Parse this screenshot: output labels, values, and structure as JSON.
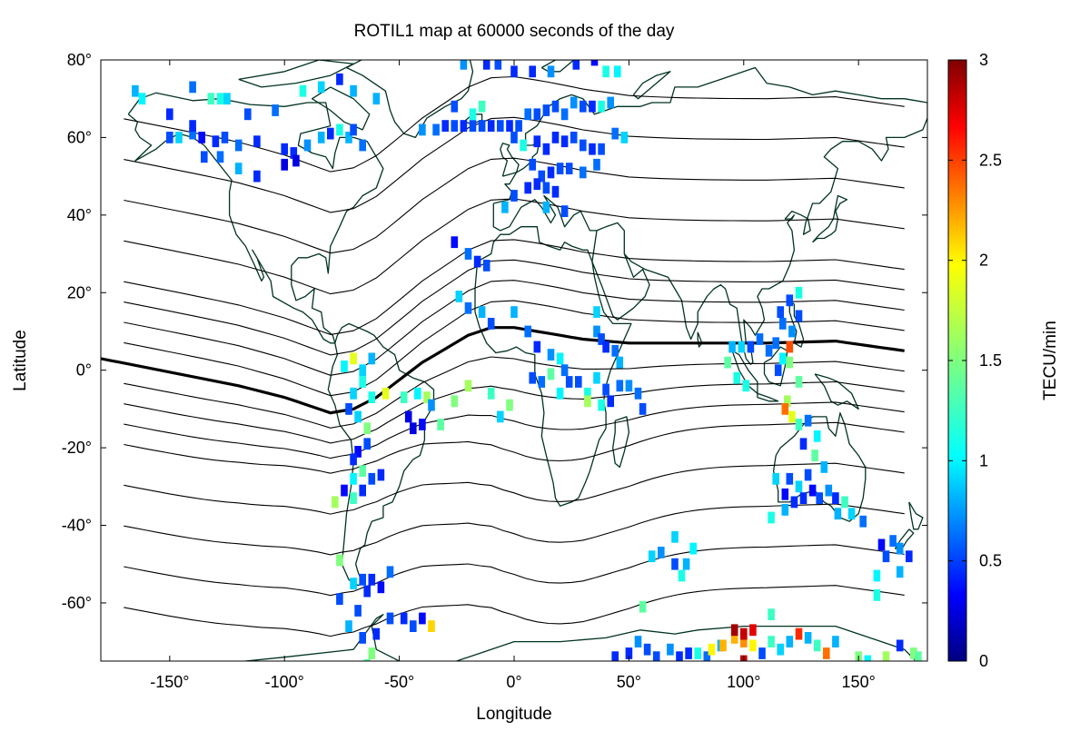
{
  "chart_data": {
    "type": "heatmap",
    "title": "ROTIL1 map at 60000 seconds of the day",
    "xlabel": "Longitude",
    "ylabel": "Latitude",
    "xlim": [
      -180,
      180
    ],
    "ylim": [
      -75,
      80
    ],
    "x_ticks": [
      -150,
      -100,
      -50,
      0,
      50,
      100,
      150
    ],
    "x_tick_labels": [
      "-150°",
      "-100°",
      "-50°",
      "0°",
      "50°",
      "100°",
      "150°"
    ],
    "y_ticks": [
      80,
      60,
      40,
      20,
      0,
      -20,
      -40,
      -60
    ],
    "y_tick_labels": [
      "80°",
      "60°",
      "40°",
      "20°",
      "0°",
      "-20°",
      "-40°",
      "-60°"
    ],
    "colorbar": {
      "label": "TECU/min",
      "range": [
        0,
        3
      ],
      "ticks": [
        0,
        0.5,
        1,
        1.5,
        2,
        2.5,
        3
      ],
      "tick_labels": [
        "0",
        "0.5",
        "1",
        "1.5",
        "2",
        "2.5",
        "3"
      ],
      "colormap": "jet"
    },
    "grid": false,
    "cell_size_deg": [
      3,
      3
    ],
    "cells": [
      [
        -165,
        72,
        0.9
      ],
      [
        -162,
        70,
        1.1
      ],
      [
        -140,
        73,
        0.7
      ],
      [
        -132,
        70,
        1.3
      ],
      [
        -128,
        70,
        1.2
      ],
      [
        -125,
        70,
        1.0
      ],
      [
        -150,
        60,
        0.6
      ],
      [
        -146,
        60,
        1.0
      ],
      [
        -140,
        61,
        0.7
      ],
      [
        -136,
        60,
        0.4
      ],
      [
        -130,
        59,
        0.5
      ],
      [
        -126,
        60,
        0.6
      ],
      [
        -120,
        58,
        0.7
      ],
      [
        -112,
        59,
        0.5
      ],
      [
        -100,
        57,
        0.5
      ],
      [
        -96,
        56,
        0.5
      ],
      [
        -90,
        58,
        0.8
      ],
      [
        -84,
        60,
        0.9
      ],
      [
        -80,
        61,
        0.5
      ],
      [
        -76,
        62,
        1.2
      ],
      [
        -72,
        60,
        0.9
      ],
      [
        -70,
        62,
        0.6
      ],
      [
        -66,
        58,
        0.7
      ],
      [
        -135,
        55,
        0.6
      ],
      [
        -128,
        55,
        0.7
      ],
      [
        -120,
        52,
        0.9
      ],
      [
        -112,
        50,
        0.5
      ],
      [
        -100,
        53,
        0.3
      ],
      [
        -95,
        54,
        0.3
      ],
      [
        -140,
        63,
        0.5
      ],
      [
        -150,
        66,
        0.5
      ],
      [
        -116,
        66,
        0.6
      ],
      [
        -104,
        67,
        0.7
      ],
      [
        -92,
        72,
        1.2
      ],
      [
        -84,
        73,
        1.0
      ],
      [
        -76,
        75,
        0.5
      ],
      [
        -70,
        72,
        0.9
      ],
      [
        -60,
        70,
        0.9
      ],
      [
        -22,
        79,
        0.8
      ],
      [
        -12,
        79,
        0.5
      ],
      [
        -7,
        79,
        0.6
      ],
      [
        0,
        77,
        0.5
      ],
      [
        8,
        77,
        0.5
      ],
      [
        16,
        77,
        0.8
      ],
      [
        27,
        79,
        0.5
      ],
      [
        35,
        80,
        0.4
      ],
      [
        40,
        77,
        1.2
      ],
      [
        45,
        77,
        1.1
      ],
      [
        -40,
        62,
        0.8
      ],
      [
        -34,
        62,
        0.7
      ],
      [
        -30,
        63,
        0.5
      ],
      [
        -26,
        63,
        0.6
      ],
      [
        -22,
        63,
        0.5
      ],
      [
        -18,
        63,
        0.6
      ],
      [
        -14,
        63,
        0.6
      ],
      [
        -10,
        63,
        0.5
      ],
      [
        -6,
        63,
        0.6
      ],
      [
        -2,
        63,
        0.5
      ],
      [
        2,
        63,
        0.6
      ],
      [
        6,
        66,
        0.7
      ],
      [
        10,
        66,
        0.6
      ],
      [
        14,
        67,
        0.6
      ],
      [
        18,
        68,
        0.6
      ],
      [
        22,
        66,
        0.7
      ],
      [
        26,
        69,
        0.8
      ],
      [
        30,
        68,
        0.6
      ],
      [
        34,
        68,
        0.5
      ],
      [
        38,
        68,
        1.2
      ],
      [
        42,
        69,
        0.8
      ],
      [
        -26,
        68,
        0.6
      ],
      [
        -18,
        66,
        1.2
      ],
      [
        -14,
        68,
        1.3
      ],
      [
        0,
        60,
        0.6
      ],
      [
        4,
        58,
        1.2
      ],
      [
        10,
        59,
        0.5
      ],
      [
        14,
        57,
        0.5
      ],
      [
        18,
        60,
        0.5
      ],
      [
        22,
        59,
        0.5
      ],
      [
        26,
        60,
        0.6
      ],
      [
        30,
        58,
        0.6
      ],
      [
        34,
        57,
        0.5
      ],
      [
        38,
        57,
        0.6
      ],
      [
        44,
        61,
        0.7
      ],
      [
        48,
        60,
        1.0
      ],
      [
        8,
        53,
        0.6
      ],
      [
        12,
        50,
        0.6
      ],
      [
        16,
        51,
        0.5
      ],
      [
        20,
        52,
        0.6
      ],
      [
        24,
        52,
        0.6
      ],
      [
        30,
        51,
        0.7
      ],
      [
        36,
        53,
        0.7
      ],
      [
        6,
        47,
        0.5
      ],
      [
        10,
        48,
        0.5
      ],
      [
        14,
        47,
        0.6
      ],
      [
        18,
        46,
        0.5
      ],
      [
        0,
        45,
        0.6
      ],
      [
        -4,
        42,
        0.9
      ],
      [
        14,
        42,
        0.9
      ],
      [
        22,
        41,
        0.6
      ],
      [
        -26,
        33,
        0.4
      ],
      [
        -20,
        30,
        0.7
      ],
      [
        -16,
        28,
        0.5
      ],
      [
        -12,
        27,
        0.6
      ],
      [
        -24,
        19,
        1.0
      ],
      [
        -20,
        16,
        0.7
      ],
      [
        -14,
        15,
        0.9
      ],
      [
        -10,
        12,
        0.6
      ],
      [
        0,
        15,
        0.9
      ],
      [
        6,
        10,
        0.7
      ],
      [
        10,
        6,
        0.5
      ],
      [
        16,
        4,
        0.8
      ],
      [
        20,
        3,
        1.1
      ],
      [
        22,
        0,
        0.7
      ],
      [
        24,
        -3,
        0.6
      ],
      [
        8,
        -2,
        0.6
      ],
      [
        12,
        -3,
        0.7
      ],
      [
        16,
        -1,
        1.4
      ],
      [
        20,
        -6,
        1.1
      ],
      [
        28,
        -3,
        0.6
      ],
      [
        32,
        -6,
        1.2
      ],
      [
        36,
        -2,
        1.0
      ],
      [
        40,
        -5,
        0.6
      ],
      [
        42,
        -8,
        0.5
      ],
      [
        46,
        -4,
        0.7
      ],
      [
        50,
        -4,
        0.8
      ],
      [
        54,
        -6,
        0.7
      ],
      [
        56,
        -10,
        0.6
      ],
      [
        36,
        10,
        0.8
      ],
      [
        38,
        8,
        0.6
      ],
      [
        40,
        6,
        0.5
      ],
      [
        44,
        5,
        0.7
      ],
      [
        46,
        2,
        0.9
      ],
      [
        36,
        15,
        1.0
      ],
      [
        32,
        -8,
        1.6
      ],
      [
        38,
        -9,
        1.2
      ],
      [
        -2,
        -9,
        1.5
      ],
      [
        -6,
        -12,
        1.0
      ],
      [
        -10,
        -6,
        1.3
      ],
      [
        -20,
        -4,
        1.6
      ],
      [
        -26,
        -8,
        1.5
      ],
      [
        -32,
        -14,
        1.4
      ],
      [
        -38,
        -7,
        1.6
      ],
      [
        -42,
        -6,
        1.1
      ],
      [
        -36,
        -9,
        0.8
      ],
      [
        -40,
        -14,
        0.4
      ],
      [
        -46,
        -12,
        0.3
      ],
      [
        -44,
        -15,
        0.3
      ],
      [
        -48,
        -7,
        1.3
      ],
      [
        -56,
        -6,
        1.8
      ],
      [
        -62,
        -7,
        1.2
      ],
      [
        -66,
        -3,
        1.2
      ],
      [
        -70,
        -6,
        1.0
      ],
      [
        -72,
        -10,
        0.6
      ],
      [
        -68,
        -12,
        1.0
      ],
      [
        -64,
        -15,
        1.5
      ],
      [
        -74,
        1,
        1.1
      ],
      [
        -70,
        3,
        1.8
      ],
      [
        -66,
        0,
        1.0
      ],
      [
        -62,
        3,
        0.9
      ],
      [
        -64,
        -19,
        0.6
      ],
      [
        -68,
        -21,
        0.4
      ],
      [
        -70,
        -23,
        0.5
      ],
      [
        -66,
        -26,
        1.4
      ],
      [
        -70,
        -28,
        1.1
      ],
      [
        -66,
        -31,
        0.5
      ],
      [
        -62,
        -28,
        0.6
      ],
      [
        -58,
        -27,
        0.5
      ],
      [
        -74,
        -31,
        0.4
      ],
      [
        -78,
        -34,
        1.6
      ],
      [
        -70,
        -33,
        1.3
      ],
      [
        -76,
        -49,
        1.5
      ],
      [
        -70,
        -55,
        1.0
      ],
      [
        -66,
        -54,
        0.6
      ],
      [
        -62,
        -54,
        0.5
      ],
      [
        -58,
        -56,
        0.4
      ],
      [
        -54,
        -52,
        0.7
      ],
      [
        -64,
        -57,
        0.5
      ],
      [
        -68,
        -62,
        0.6
      ],
      [
        -76,
        -59,
        0.6
      ],
      [
        -72,
        -66,
        0.9
      ],
      [
        -66,
        -69,
        0.6
      ],
      [
        -60,
        -68,
        0.5
      ],
      [
        -54,
        -64,
        0.6
      ],
      [
        -48,
        -64,
        0.5
      ],
      [
        -44,
        -66,
        0.6
      ],
      [
        -40,
        -64,
        0.4
      ],
      [
        -36,
        -66,
        2.0
      ],
      [
        -62,
        -73,
        1.5
      ],
      [
        -64,
        -76,
        1.4
      ],
      [
        93,
        2,
        1.4
      ],
      [
        97,
        -2,
        1.2
      ],
      [
        101,
        -4,
        1.2
      ],
      [
        95,
        6,
        0.9
      ],
      [
        99,
        6,
        1.0
      ],
      [
        103,
        6,
        0.6
      ],
      [
        107,
        8,
        0.7
      ],
      [
        111,
        5,
        0.7
      ],
      [
        115,
        0,
        0.6
      ],
      [
        117,
        3,
        1.1
      ],
      [
        120,
        2,
        1.5
      ],
      [
        124,
        -3,
        1.4
      ],
      [
        119,
        -8,
        1.6
      ],
      [
        118,
        -10,
        2.3
      ],
      [
        121,
        -12,
        1.8
      ],
      [
        124,
        -14,
        1.3
      ],
      [
        128,
        -13,
        0.7
      ],
      [
        132,
        -17,
        1.1
      ],
      [
        126,
        -19,
        0.5
      ],
      [
        131,
        -22,
        1.4
      ],
      [
        135,
        -25,
        0.9
      ],
      [
        120,
        -28,
        0.6
      ],
      [
        124,
        -30,
        1.0
      ],
      [
        128,
        -27,
        0.6
      ],
      [
        114,
        -28,
        1.0
      ],
      [
        118,
        -32,
        0.4
      ],
      [
        122,
        -34,
        0.5
      ],
      [
        126,
        -33,
        0.5
      ],
      [
        130,
        -31,
        0.4
      ],
      [
        133,
        -33,
        0.6
      ],
      [
        137,
        -31,
        0.8
      ],
      [
        140,
        -33,
        0.5
      ],
      [
        144,
        -34,
        1.3
      ],
      [
        147,
        -37,
        1.0
      ],
      [
        141,
        -37,
        0.9
      ],
      [
        118,
        -36,
        0.9
      ],
      [
        112,
        -38,
        1.2
      ],
      [
        152,
        -39,
        0.7
      ],
      [
        160,
        -45,
        0.4
      ],
      [
        165,
        -44,
        0.7
      ],
      [
        168,
        -46,
        0.8
      ],
      [
        172,
        -48,
        0.5
      ],
      [
        162,
        -48,
        0.6
      ],
      [
        158,
        -53,
        1.1
      ],
      [
        168,
        -52,
        0.9
      ],
      [
        158,
        -58,
        1.2
      ],
      [
        114,
        7,
        0.7
      ],
      [
        117,
        12,
        0.7
      ],
      [
        121,
        10,
        0.8
      ],
      [
        124,
        14,
        0.6
      ],
      [
        120,
        18,
        0.6
      ],
      [
        124,
        20,
        1.2
      ],
      [
        120,
        6,
        2.4
      ],
      [
        116,
        15,
        0.6
      ],
      [
        60,
        -48,
        1.0
      ],
      [
        64,
        -47,
        0.8
      ],
      [
        70,
        -43,
        1.0
      ],
      [
        70,
        -50,
        0.6
      ],
      [
        75,
        -50,
        0.9
      ],
      [
        78,
        -46,
        1.1
      ],
      [
        73,
        -53,
        1.2
      ],
      [
        56,
        -61,
        1.4
      ],
      [
        54,
        -70,
        0.8
      ],
      [
        58,
        -72,
        0.6
      ],
      [
        50,
        -73,
        0.5
      ],
      [
        44,
        -74,
        0.5
      ],
      [
        62,
        -74,
        0.6
      ],
      [
        68,
        -72,
        0.8
      ],
      [
        72,
        -74,
        0.5
      ],
      [
        76,
        -73,
        0.5
      ],
      [
        80,
        -73,
        1.2
      ],
      [
        84,
        -74,
        0.7
      ],
      [
        90,
        -71,
        0.9
      ],
      [
        96,
        -69,
        2.1
      ],
      [
        100,
        -70,
        2.2
      ],
      [
        104,
        -71,
        1.9
      ],
      [
        108,
        -73,
        0.6
      ],
      [
        112,
        -70,
        1.3
      ],
      [
        116,
        -72,
        1.0
      ],
      [
        120,
        -70,
        0.9
      ],
      [
        124,
        -68,
        2.5
      ],
      [
        128,
        -69,
        0.9
      ],
      [
        132,
        -71,
        1.3
      ],
      [
        136,
        -73,
        2.3
      ],
      [
        140,
        -70,
        0.9
      ],
      [
        100,
        -75,
        2.8
      ],
      [
        96,
        -67,
        2.9
      ],
      [
        100,
        -68,
        2.8
      ],
      [
        104,
        -67,
        2.7
      ],
      [
        112,
        -63,
        1.3
      ],
      [
        86,
        -72,
        1.9
      ],
      [
        91,
        -71,
        2.1
      ],
      [
        150,
        -74,
        1.5
      ],
      [
        162,
        -74,
        1.6
      ],
      [
        154,
        -75,
        1.1
      ],
      [
        174,
        -73,
        1.5
      ],
      [
        168,
        -71,
        0.5
      ],
      [
        176,
        -74,
        1.4
      ]
    ],
    "contour_levels_deg": [
      -60,
      -50,
      -40,
      -30,
      -20,
      -15,
      -10,
      -5,
      0,
      5,
      10,
      15,
      20,
      30,
      40,
      50,
      60
    ],
    "highlighted_contour_deg": 0
  },
  "colors": {
    "coastline": "#003322",
    "contour": "#000000",
    "dip_equator": "#000000",
    "frame": "#000000"
  }
}
